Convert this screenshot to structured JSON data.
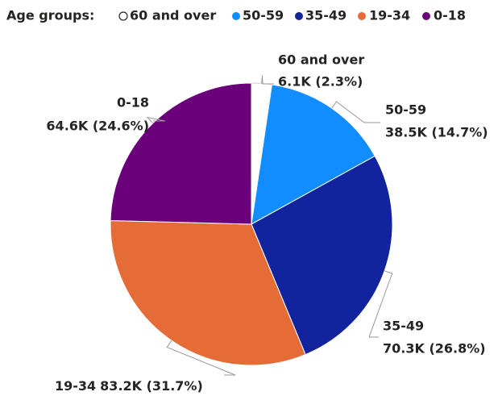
{
  "chart_data": {
    "type": "pie",
    "legend_title": "Age groups:",
    "legend": "top-left",
    "categories": [
      "60 and over",
      "50-59",
      "35-49",
      "19-34",
      "0-18"
    ],
    "values": [
      6100,
      38500,
      70300,
      83200,
      64600
    ],
    "value_labels": [
      "6.1K (2.3%)",
      "38.5K (14.7%)",
      "70.3K (26.8%)",
      "83.2K (31.7%)",
      "64.6K (24.6%)"
    ],
    "colors": [
      "#ffffff",
      "#118dff",
      "#12239e",
      "#e66c37",
      "#6b007b"
    ]
  }
}
